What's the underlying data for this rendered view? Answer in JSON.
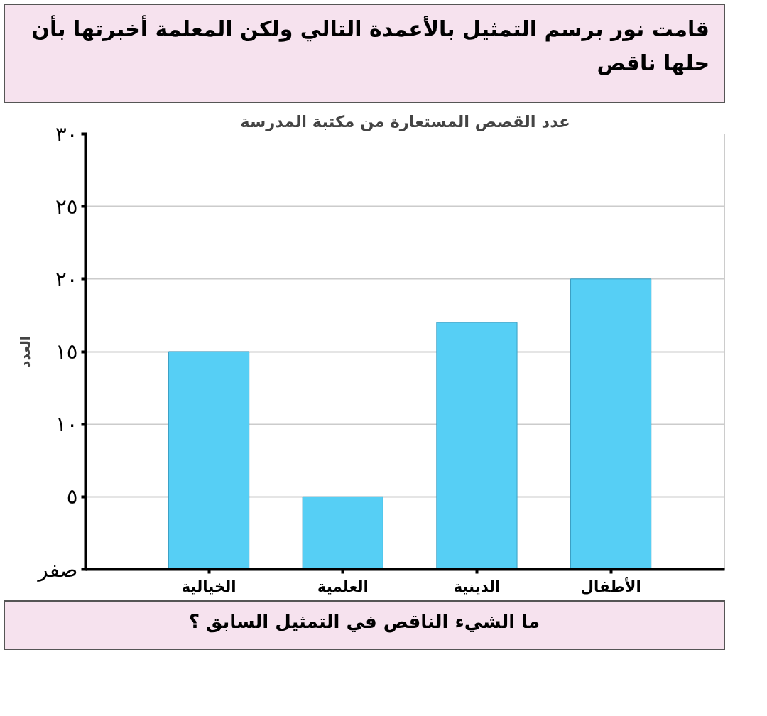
{
  "chart_data": {
    "type": "bar",
    "title": "عدد القصص المستعارة من مكتبة المدرسة",
    "ylabel": "العدد",
    "categories": [
      "الخيالية",
      "العلمية",
      "الدينية",
      "الأطفال"
    ],
    "values": [
      15,
      5,
      17,
      20
    ],
    "color": "#56cff5",
    "ylim": [
      0,
      30
    ],
    "yticks": [
      {
        "value": 0,
        "label": "صفر"
      },
      {
        "value": 5,
        "label": "٥"
      },
      {
        "value": 10,
        "label": "١٠"
      },
      {
        "value": 15,
        "label": "١٥"
      },
      {
        "value": 20,
        "label": "٢٠"
      },
      {
        "value": 25,
        "label": "٢٥"
      },
      {
        "value": 30,
        "label": "٣٠"
      }
    ],
    "grid": "y",
    "annotations": [
      "قامت نور برسم التمثيل بالأعمدة التالي ولكن المعلمة أخبرتها بأن حلها ناقص",
      "ما الشيء الناقص في التمثيل السابق ؟"
    ]
  }
}
